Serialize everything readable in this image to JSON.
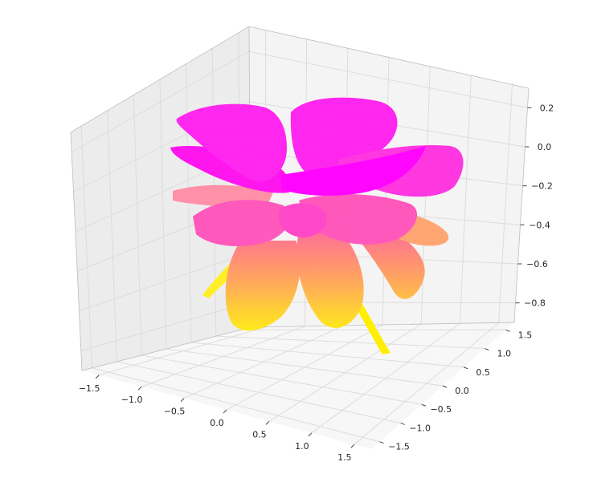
{
  "chart_data": {
    "type": "surface3d",
    "title": "",
    "xlabel": "",
    "ylabel": "",
    "zlabel": "",
    "x_ticks": [
      "−1.5",
      "−1.0",
      "−0.5",
      "0.0",
      "0.5",
      "1.0",
      "1.5"
    ],
    "y_ticks": [
      "−1.5",
      "−1.0",
      "−0.5",
      "0.0",
      "0.5",
      "1.0",
      "1.5"
    ],
    "z_ticks": [
      "−0.8",
      "−0.6",
      "−0.4",
      "−0.2",
      "0.0",
      "0.2"
    ],
    "xlim": [
      -1.7,
      1.7
    ],
    "ylim": [
      -1.7,
      1.7
    ],
    "zlim": [
      -0.9,
      0.3
    ],
    "grid": true,
    "colormap": "spring",
    "colors": {
      "high": "#ff00ff",
      "low": "#ffff00",
      "pane": "#f2f2f2",
      "grid": "#dcdcdc"
    }
  }
}
